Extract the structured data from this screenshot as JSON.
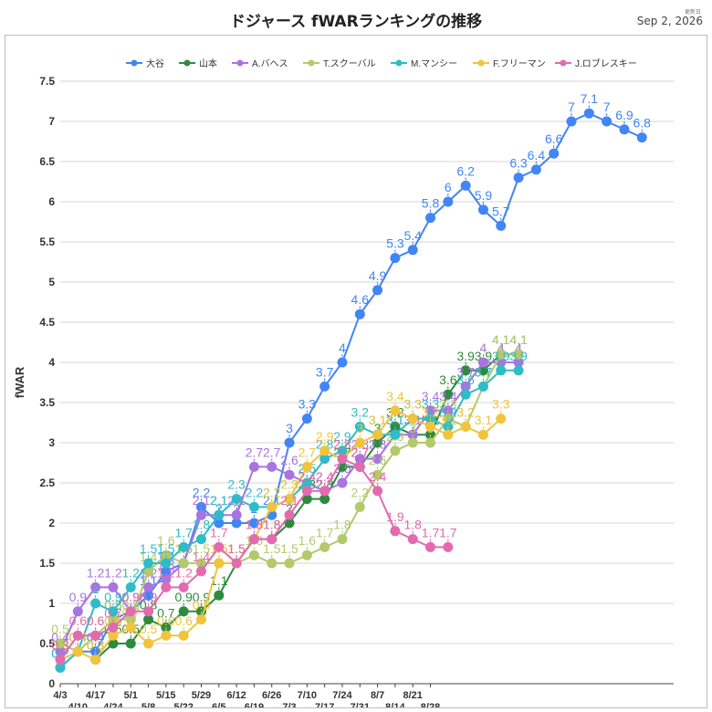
{
  "title": "ドジャース fWARランキングの推移",
  "update": {
    "label": "更新日",
    "date": "Sep 2, 2026"
  },
  "chart_data": {
    "type": "line",
    "ylabel": "fWAR",
    "xlabel": "",
    "ylim": [
      0,
      7.5
    ],
    "yticks": [
      "0",
      "0.5",
      "1",
      "1.5",
      "2",
      "2.5",
      "3",
      "3.5",
      "4",
      "4.5",
      "5",
      "5.5",
      "6",
      "6.5",
      "7",
      "7.5"
    ],
    "x_ticks": [
      {
        "label": "4/3",
        "i": 0
      },
      {
        "label": "4/10",
        "i": 3
      },
      {
        "label": "4/17",
        "i": 6
      },
      {
        "label": "4/24",
        "i": 9
      },
      {
        "label": "5/1",
        "i": 12
      },
      {
        "label": "5/8",
        "i": 15
      },
      {
        "label": "5/15",
        "i": 18
      },
      {
        "label": "5/22",
        "i": 21
      },
      {
        "label": "5/29",
        "i": 24
      },
      {
        "label": "6/5",
        "i": 27
      },
      {
        "label": "6/12",
        "i": 30
      },
      {
        "label": "6/19",
        "i": 33
      },
      {
        "label": "6/26",
        "i": 36
      },
      {
        "label": "7/3",
        "i": 39
      },
      {
        "label": "7/10",
        "i": 42
      },
      {
        "label": "7/17",
        "i": 45
      },
      {
        "label": "7/24",
        "i": 48
      },
      {
        "label": "7/31",
        "i": 51
      },
      {
        "label": "8/7",
        "i": 54
      },
      {
        "label": "8/14",
        "i": 57
      },
      {
        "label": "8/21",
        "i": 60
      },
      {
        "label": "8/28",
        "i": 63
      }
    ],
    "legend_position": "top",
    "grid": true,
    "series": [
      {
        "name": "大谷",
        "color": "#4285F4",
        "points": [
          [
            0,
            0.2
          ],
          [
            1,
            0.4
          ],
          [
            2,
            0.4
          ],
          [
            3,
            0.8
          ],
          [
            4,
            0.9
          ],
          [
            5,
            1.1
          ],
          [
            6,
            1.4
          ],
          [
            7,
            1.5
          ],
          [
            8,
            2.2
          ],
          [
            9,
            2.0
          ],
          [
            10,
            2.0
          ],
          [
            11,
            2.0
          ],
          [
            12,
            2.1
          ],
          [
            13,
            3.0
          ],
          [
            14,
            3.3
          ],
          [
            15,
            3.7
          ],
          [
            16,
            4.0
          ],
          [
            17,
            4.6
          ],
          [
            18,
            4.9
          ],
          [
            19,
            5.3
          ],
          [
            20,
            5.4
          ],
          [
            21,
            5.8
          ],
          [
            22,
            6.0
          ],
          [
            23,
            6.2
          ],
          [
            24,
            5.9
          ],
          [
            25,
            5.7
          ],
          [
            26,
            6.3
          ],
          [
            27,
            6.4
          ],
          [
            28,
            6.6
          ],
          [
            29,
            7.0
          ],
          [
            30,
            7.1
          ],
          [
            31,
            7.0
          ],
          [
            32,
            6.9
          ],
          [
            33,
            6.8
          ]
        ]
      },
      {
        "name": "山本",
        "color": "#2E8B3E",
        "points": [
          [
            2,
            0.3
          ],
          [
            3,
            0.5
          ],
          [
            4,
            0.5
          ],
          [
            5,
            0.8
          ],
          [
            6,
            0.7
          ],
          [
            7,
            0.9
          ],
          [
            8,
            0.9
          ],
          [
            9,
            1.1
          ],
          [
            10,
            1.5
          ],
          [
            11,
            1.8
          ],
          [
            12,
            1.8
          ],
          [
            13,
            2.0
          ],
          [
            14,
            2.3
          ],
          [
            15,
            2.3
          ],
          [
            16,
            2.7
          ],
          [
            17,
            2.7
          ],
          [
            18,
            3.0
          ],
          [
            19,
            3.2
          ],
          [
            20,
            3.1
          ],
          [
            21,
            3.1
          ],
          [
            22,
            3.6
          ],
          [
            23,
            3.9
          ],
          [
            24,
            3.9
          ],
          [
            25,
            4.1
          ],
          [
            26,
            4.1
          ]
        ]
      },
      {
        "name": "A.バヘス",
        "color": "#A874E0",
        "points": [
          [
            0,
            0.4
          ],
          [
            1,
            0.9
          ],
          [
            2,
            1.2
          ],
          [
            3,
            1.2
          ],
          [
            4,
            0.9
          ],
          [
            5,
            1.2
          ],
          [
            6,
            1.3
          ],
          [
            7,
            1.5
          ],
          [
            8,
            2.1
          ],
          [
            9,
            2.1
          ],
          [
            10,
            2.1
          ],
          [
            11,
            2.7
          ],
          [
            12,
            2.7
          ],
          [
            13,
            2.6
          ],
          [
            14,
            2.5
          ],
          [
            15,
            2.4
          ],
          [
            16,
            2.5
          ],
          [
            17,
            2.8
          ],
          [
            18,
            2.8
          ],
          [
            19,
            3.1
          ],
          [
            20,
            3.1
          ],
          [
            21,
            3.4
          ],
          [
            22,
            3.4
          ],
          [
            23,
            3.7
          ],
          [
            24,
            4.0
          ],
          [
            25,
            4.0
          ],
          [
            26,
            4.0
          ]
        ]
      },
      {
        "name": "T.スクーバル",
        "color": "#B3C96B",
        "points": [
          [
            0,
            0.5
          ],
          [
            1,
            0.4
          ],
          [
            2,
            0.6
          ],
          [
            3,
            0.8
          ],
          [
            4,
            0.8
          ],
          [
            5,
            1.4
          ],
          [
            6,
            1.6
          ],
          [
            7,
            1.5
          ],
          [
            8,
            1.5
          ],
          [
            9,
            1.5
          ],
          [
            10,
            1.5
          ],
          [
            11,
            1.6
          ],
          [
            12,
            1.5
          ],
          [
            13,
            1.5
          ],
          [
            14,
            1.6
          ],
          [
            15,
            1.7
          ],
          [
            16,
            1.8
          ],
          [
            17,
            2.2
          ],
          [
            18,
            2.6
          ],
          [
            19,
            2.9
          ],
          [
            20,
            3.0
          ],
          [
            21,
            3.0
          ],
          [
            22,
            3.3
          ],
          [
            23,
            3.2
          ],
          [
            24,
            3.7
          ],
          [
            25,
            4.1
          ],
          [
            26,
            4.1
          ]
        ]
      },
      {
        "name": "M.マンシー",
        "color": "#2EBCC8",
        "points": [
          [
            0,
            0.2
          ],
          [
            1,
            0.4
          ],
          [
            2,
            1.0
          ],
          [
            3,
            0.9
          ],
          [
            4,
            1.2
          ],
          [
            5,
            1.5
          ],
          [
            6,
            1.5
          ],
          [
            7,
            1.7
          ],
          [
            8,
            1.8
          ],
          [
            9,
            2.1
          ],
          [
            10,
            2.3
          ],
          [
            11,
            2.2
          ],
          [
            12,
            2.2
          ],
          [
            13,
            2.3
          ],
          [
            14,
            2.5
          ],
          [
            15,
            2.8
          ],
          [
            16,
            2.9
          ],
          [
            17,
            3.2
          ],
          [
            18,
            3.1
          ],
          [
            19,
            3.1
          ],
          [
            20,
            3.3
          ],
          [
            21,
            3.3
          ],
          [
            22,
            3.2
          ],
          [
            23,
            3.6
          ],
          [
            24,
            3.7
          ],
          [
            25,
            3.9
          ],
          [
            26,
            3.9
          ]
        ]
      },
      {
        "name": "F.フリーマン",
        "color": "#F0C43C",
        "points": [
          [
            0,
            0.3
          ],
          [
            1,
            0.4
          ],
          [
            2,
            0.3
          ],
          [
            3,
            0.6
          ],
          [
            4,
            0.7
          ],
          [
            5,
            0.5
          ],
          [
            6,
            0.6
          ],
          [
            7,
            0.6
          ],
          [
            8,
            0.8
          ],
          [
            9,
            1.5
          ],
          [
            10,
            1.5
          ],
          [
            11,
            1.8
          ],
          [
            12,
            2.2
          ],
          [
            13,
            2.3
          ],
          [
            14,
            2.7
          ],
          [
            15,
            2.9
          ],
          [
            16,
            2.8
          ],
          [
            17,
            3.0
          ],
          [
            18,
            3.1
          ],
          [
            19,
            3.4
          ],
          [
            20,
            3.3
          ],
          [
            21,
            3.2
          ],
          [
            22,
            3.1
          ],
          [
            23,
            3.2
          ],
          [
            24,
            3.1
          ],
          [
            25,
            3.3
          ]
        ]
      },
      {
        "name": "J.ロブレスキー",
        "color": "#E26BAE",
        "points": [
          [
            0,
            0.3
          ],
          [
            1,
            0.6
          ],
          [
            2,
            0.6
          ],
          [
            3,
            0.7
          ],
          [
            4,
            0.9
          ],
          [
            5,
            0.9
          ],
          [
            6,
            1.2
          ],
          [
            7,
            1.2
          ],
          [
            8,
            1.4
          ],
          [
            9,
            1.7
          ],
          [
            10,
            1.5
          ],
          [
            11,
            1.8
          ],
          [
            12,
            1.8
          ],
          [
            13,
            2.1
          ],
          [
            14,
            2.4
          ],
          [
            15,
            2.4
          ],
          [
            16,
            2.8
          ],
          [
            17,
            2.7
          ],
          [
            18,
            2.4
          ],
          [
            19,
            1.9
          ],
          [
            20,
            1.8
          ],
          [
            21,
            1.7
          ],
          [
            22,
            1.7
          ]
        ]
      }
    ]
  }
}
